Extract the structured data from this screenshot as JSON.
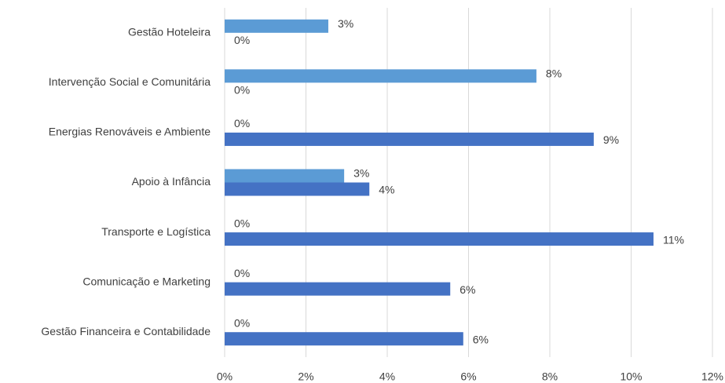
{
  "chart_data": {
    "type": "bar",
    "orientation": "horizontal",
    "categories": [
      "Gestão Hoteleira",
      "Intervenção Social e Comunitária",
      "Energias Renováveis e Ambiente",
      "Apoio à Infância",
      "Transporte e Logística",
      "Comunicação e Marketing",
      "Gestão Financeira e Contabilidade"
    ],
    "series": [
      {
        "color": "#5b9bd5",
        "values": [
          2.55,
          7.67,
          0,
          2.94,
          0,
          0,
          0
        ],
        "value_labels": [
          "3%",
          "8%",
          "0%",
          "3%",
          "0%",
          "0%",
          "0%"
        ]
      },
      {
        "color": "#4472c4",
        "values": [
          0,
          0,
          9.08,
          3.56,
          10.55,
          5.55,
          5.87
        ],
        "value_labels": [
          "0%",
          "0%",
          "9%",
          "4%",
          "11%",
          "6%",
          "6%"
        ]
      }
    ],
    "xlim": [
      0,
      12
    ],
    "xticks": [
      {
        "value": 0,
        "label": "0%"
      },
      {
        "value": 2,
        "label": "2%"
      },
      {
        "value": 4,
        "label": "4%"
      },
      {
        "value": 6,
        "label": "6%"
      },
      {
        "value": 8,
        "label": "8%"
      },
      {
        "value": 10,
        "label": "10%"
      },
      {
        "value": 12,
        "label": "12%"
      }
    ],
    "grid": true
  }
}
